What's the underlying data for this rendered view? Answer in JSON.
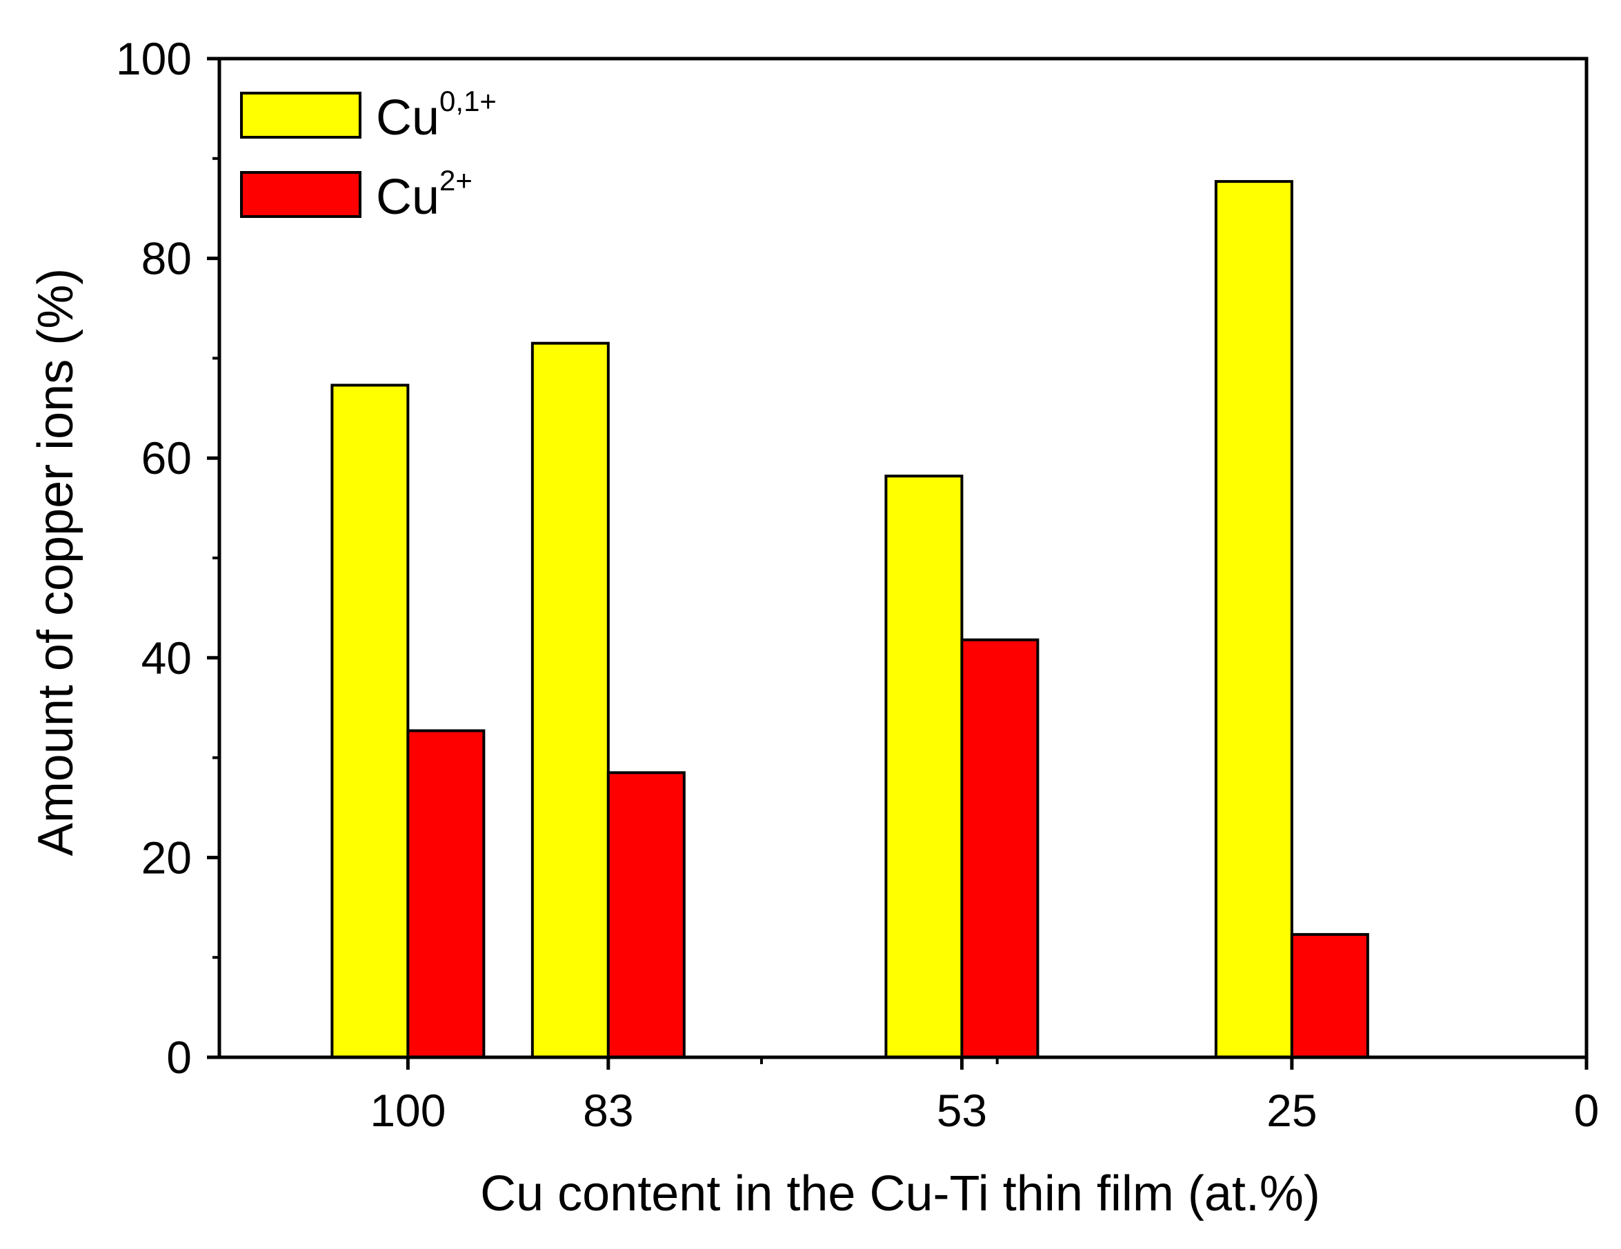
{
  "chart_data": {
    "type": "bar",
    "title": "",
    "xlabel": "Cu content in the Cu-Ti thin film (at.%)",
    "ylabel": "Amount of copper ions (%)",
    "categories": [
      "100",
      "83",
      "53",
      "25"
    ],
    "x_positions": [
      100,
      83,
      53,
      25
    ],
    "xlim": [
      116,
      0
    ],
    "x_ticks": [
      "100",
      "83",
      "53",
      "25",
      "0"
    ],
    "ylim": [
      0,
      100
    ],
    "y_ticks": [
      "0",
      "20",
      "40",
      "60",
      "80",
      "100"
    ],
    "grid": false,
    "legend_position": "top-left",
    "series": [
      {
        "base": "Cu",
        "sup": "0,1+",
        "color": "#ffff00",
        "values": [
          67.3,
          71.5,
          58.2,
          87.7
        ]
      },
      {
        "base": "Cu",
        "sup": "2+",
        "color": "#ff0000",
        "values": [
          32.7,
          28.5,
          41.8,
          12.3
        ]
      }
    ]
  }
}
